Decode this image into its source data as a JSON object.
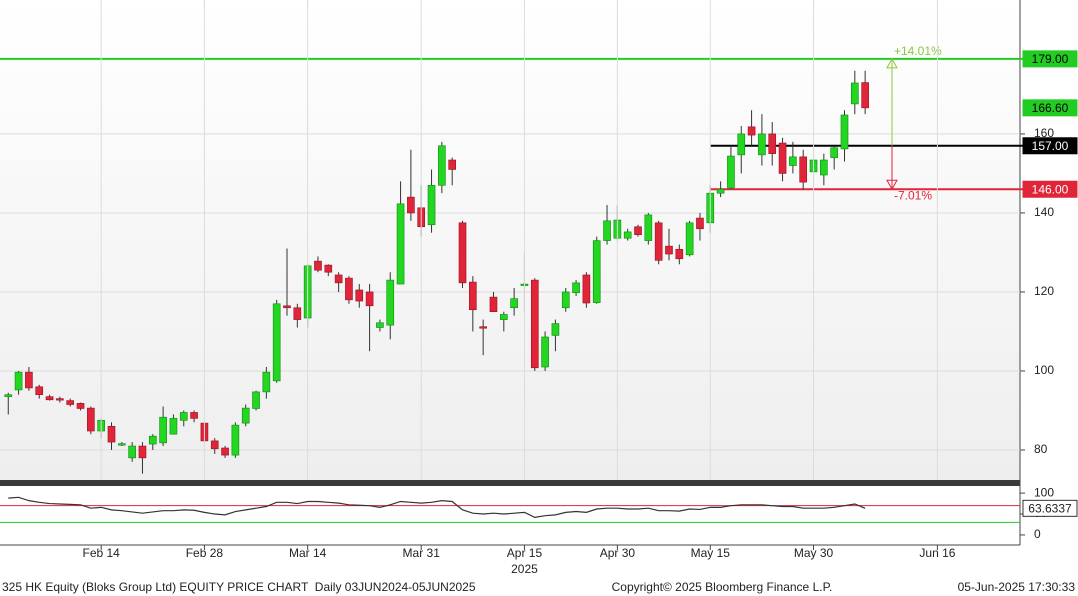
{
  "chart_data": [
    {
      "type": "candlestick",
      "open": [
        93.5,
        95.2,
        99.7,
        96,
        93.5,
        93,
        92.5,
        91.8,
        90.6,
        84.8,
        86,
        81.3,
        78,
        81,
        81.5,
        81.8,
        84,
        87.5,
        89.5,
        86.8,
        82.3,
        80.5,
        78.7,
        86.8,
        90.5,
        94.7,
        97.5,
        116.5,
        116,
        113.4,
        127.8,
        126.8,
        124.3,
        123.5,
        120.5,
        120,
        111,
        111.6,
        122,
        144,
        141.3,
        137,
        147,
        153.4,
        137.5,
        122.5,
        111.2,
        118.7,
        113,
        116,
        122,
        123,
        101,
        109,
        116,
        119.8,
        124.3,
        117.3,
        133,
        133.6,
        133.6,
        136.5,
        133,
        137.5,
        131.6,
        130.8,
        129.4,
        138.7,
        137.5,
        145,
        146.3,
        154.7,
        161.8,
        154.7,
        160,
        157.7,
        152,
        154.2,
        150.4,
        149.6,
        154,
        156.2,
        167.6,
        173
      ],
      "high": [
        94.5,
        100,
        101,
        96.5,
        94,
        93.5,
        93,
        92,
        91,
        88,
        87,
        82,
        82,
        82,
        84,
        91,
        89,
        90,
        90,
        87,
        83,
        81,
        87,
        91.5,
        95,
        101,
        118,
        131,
        117,
        127,
        129,
        127,
        125,
        124,
        122,
        122,
        113,
        125,
        148,
        156,
        147,
        151,
        158,
        154,
        138,
        124,
        113,
        120,
        115,
        121,
        130,
        123.5,
        110,
        113,
        121,
        123,
        125,
        134,
        142,
        142,
        136,
        137,
        140,
        138,
        136,
        132,
        138,
        140,
        147,
        148,
        157,
        162,
        166,
        165,
        163,
        159,
        158,
        156,
        156,
        155,
        157,
        166,
        176,
        176
      ],
      "low": [
        89,
        94,
        95,
        93,
        92.5,
        92,
        91,
        90,
        84,
        83,
        80,
        81,
        77,
        74,
        80,
        81,
        84,
        86,
        87,
        82,
        79,
        78,
        78,
        86,
        90,
        93,
        97,
        114,
        111,
        111,
        125,
        124,
        120,
        117,
        116,
        105,
        110,
        108,
        122,
        138,
        134,
        135,
        145,
        147,
        121,
        110,
        104,
        115,
        110,
        114,
        115,
        100,
        100,
        105,
        115,
        119,
        116,
        117,
        132,
        133,
        133,
        134,
        132,
        127,
        128,
        127,
        129,
        133,
        135,
        144,
        146,
        150,
        157,
        152,
        152,
        148,
        150,
        146,
        147,
        147,
        151,
        153,
        165,
        165
      ],
      "close": [
        94,
        99.7,
        95.7,
        94,
        92.7,
        92.8,
        91.5,
        90.5,
        84.8,
        87.5,
        82,
        81.6,
        81,
        78,
        83.5,
        88.3,
        88,
        89.5,
        88,
        82.3,
        80.3,
        78.7,
        86.3,
        90.6,
        94.7,
        99.7,
        117,
        116,
        113,
        126.6,
        125.5,
        125,
        122.3,
        118,
        117.7,
        116.5,
        112.2,
        123,
        142.3,
        140,
        136.5,
        147,
        157,
        151,
        122.3,
        115.5,
        111,
        115,
        114.3,
        118.3,
        122,
        100.8,
        108.6,
        112,
        120,
        122.3,
        117.2,
        133,
        138,
        138.2,
        135.2,
        134.5,
        139.5,
        128,
        129.6,
        128.4,
        137.5,
        136,
        145,
        146,
        154.4,
        160,
        159.7,
        160,
        155,
        150,
        154.2,
        147.8,
        153.4,
        153.4,
        156.5,
        164.8,
        172.9,
        166.6
      ],
      "up_color": "#22d622",
      "down_color": "#e0243a",
      "ylim": [
        72.4,
        193.9
      ],
      "yticks": [
        80,
        100,
        120,
        140,
        160
      ],
      "xlim": [
        -0.8,
        98
      ],
      "grid": true,
      "levels": [
        {
          "value": 179,
          "label": "179.00",
          "color": "#22cc22"
        },
        {
          "value": 157,
          "label": "157.00",
          "color": "#000000",
          "start": 68
        },
        {
          "value": 146,
          "label": "146.00",
          "color": "#e0243a",
          "start": 68
        }
      ],
      "last_price": {
        "value": 166.6,
        "label": "166.60",
        "color": "#22cc22"
      },
      "arrows": [
        {
          "from": 157,
          "to": 179,
          "label": "+14.01%",
          "color": "#8dc63f",
          "x": 85.6
        },
        {
          "from": 157,
          "to": 146,
          "label": "-7.01%",
          "color": "#e0243a",
          "x": 85.6
        }
      ]
    },
    {
      "type": "line",
      "values": [
        88,
        90,
        82,
        78,
        75,
        74,
        73,
        72,
        64,
        66,
        60,
        58,
        55,
        52,
        55,
        58,
        58,
        60,
        59,
        54,
        50,
        48,
        56,
        60,
        64,
        68,
        78,
        78,
        75,
        80,
        80,
        78,
        76,
        72,
        71,
        70,
        66,
        72,
        80,
        78,
        76,
        78,
        82,
        80,
        60,
        52,
        50,
        52,
        50,
        52,
        54,
        42,
        46,
        48,
        54,
        56,
        54,
        62,
        64,
        64,
        62,
        62,
        64,
        58,
        58,
        57,
        62,
        61,
        66,
        66,
        70,
        72,
        72,
        72,
        70,
        68,
        68,
        64,
        64,
        64,
        66,
        70,
        74,
        63.6337
      ],
      "color": "#333333",
      "ylim": [
        -24,
        117
      ],
      "yticks": [
        0,
        50,
        100
      ],
      "xlim": [
        -0.8,
        98
      ],
      "xticks": [
        {
          "value": 9,
          "label": "Feb 14"
        },
        {
          "value": 19,
          "label": "Feb 28"
        },
        {
          "value": 29,
          "label": "Mar 14"
        },
        {
          "value": 40,
          "label": "Mar 31"
        },
        {
          "value": 50,
          "label": "Apr 15"
        },
        {
          "value": 59,
          "label": "Apr 30"
        },
        {
          "value": 68,
          "label": "May 15"
        },
        {
          "value": 78,
          "label": "May 30"
        },
        {
          "value": 90,
          "label": "Jun 16"
        }
      ],
      "hlines": [
        {
          "value": 70,
          "color": "#e0243a"
        },
        {
          "value": 30,
          "color": "#22cc22"
        }
      ],
      "year_label": {
        "value": 50,
        "label": "2025"
      }
    }
  ],
  "footer": {
    "left": "325 HK Equity (Bloks Group Ltd) EQUITY PRICE CHART  Daily 03JUN2024-05JUN2025",
    "center": "Copyright© 2025 Bloomberg Finance L.P.",
    "right": "05-Jun-2025 17:30:33"
  }
}
